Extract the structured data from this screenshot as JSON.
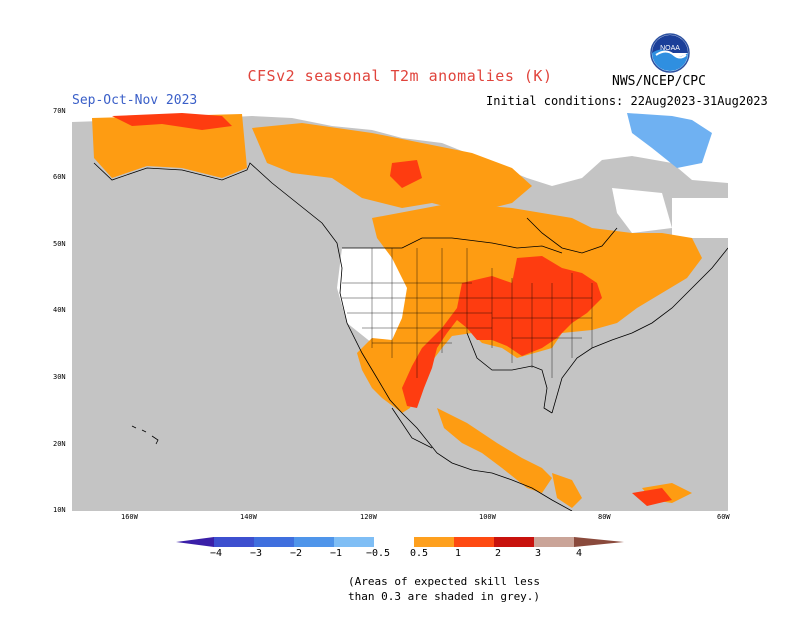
{
  "header": {
    "title": "CFSv2 seasonal T2m anomalies (K)",
    "season": "Sep-Oct-Nov 2023",
    "initial_conditions": "Initial conditions: 22Aug2023-31Aug2023",
    "agency": "NWS/NCEP/CPC",
    "logo_text": "NOAA"
  },
  "axes": {
    "lat_labels": [
      "70N",
      "60N",
      "50N",
      "40N",
      "30N",
      "20N",
      "10N"
    ],
    "lon_labels": [
      "160W",
      "140W",
      "120W",
      "100W",
      "80W",
      "60W"
    ]
  },
  "colorbar": {
    "labels": [
      "−4",
      "−3",
      "−2",
      "−1",
      "−0.5",
      "0.5",
      "1",
      "2",
      "3",
      "4"
    ],
    "colors": [
      "#3a1fa8",
      "#3d55d6",
      "#3f86e8",
      "#6fb1f2",
      "#9dcbf7",
      "#ffffff",
      "#fea01e",
      "#fe4a12",
      "#e0150f",
      "#a8110d",
      "#caa498",
      "#8a4a3c"
    ]
  },
  "legend_colors": {
    "grey": "#c4c4c4",
    "anom_05_1": "#fe9c12",
    "anom_1_2": "#fe3c10",
    "cold": "#6fb1f2"
  },
  "footnote": {
    "line1": "(Areas of expected skill less",
    "line2": "than 0.3 are shaded in grey.)"
  }
}
